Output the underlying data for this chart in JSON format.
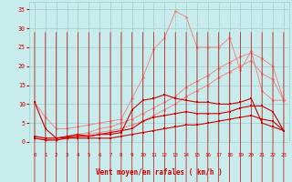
{
  "x": [
    0,
    1,
    2,
    3,
    4,
    5,
    6,
    7,
    8,
    9,
    10,
    11,
    12,
    13,
    14,
    15,
    16,
    17,
    18,
    19,
    20,
    21,
    22,
    23
  ],
  "line1_dark": [
    10.5,
    3.5,
    1.0,
    1.2,
    1.5,
    1.5,
    2.0,
    2.0,
    2.5,
    8.5,
    11.0,
    11.5,
    12.5,
    11.5,
    11.0,
    10.5,
    10.5,
    10.0,
    10.0,
    10.5,
    11.5,
    5.0,
    4.0,
    3.0
  ],
  "line2_dark": [
    1.5,
    1.0,
    1.0,
    1.5,
    2.0,
    1.5,
    2.0,
    2.5,
    3.0,
    3.5,
    5.5,
    6.5,
    7.0,
    7.5,
    8.0,
    7.5,
    7.5,
    7.5,
    8.0,
    9.0,
    9.5,
    9.5,
    8.0,
    3.0
  ],
  "line3_dark": [
    1.0,
    0.5,
    0.5,
    1.0,
    1.0,
    1.0,
    1.0,
    1.0,
    1.5,
    2.0,
    2.5,
    3.0,
    3.5,
    4.0,
    4.5,
    4.5,
    5.0,
    5.5,
    6.0,
    6.5,
    7.0,
    6.0,
    5.5,
    3.0
  ],
  "line4_light": [
    10.5,
    6.5,
    3.5,
    3.5,
    4.0,
    4.5,
    5.0,
    5.5,
    6.0,
    11.5,
    17.0,
    24.5,
    27.5,
    34.5,
    33.0,
    25.0,
    25.0,
    25.0,
    27.5,
    19.0,
    24.0,
    13.5,
    11.0,
    11.0
  ],
  "line5_light": [
    1.5,
    1.0,
    1.0,
    1.5,
    2.0,
    2.5,
    3.5,
    4.0,
    5.0,
    6.0,
    7.5,
    9.0,
    10.5,
    12.0,
    14.5,
    16.0,
    17.5,
    19.5,
    21.0,
    22.5,
    23.5,
    22.0,
    20.0,
    11.0
  ],
  "line6_light": [
    1.0,
    0.5,
    0.5,
    1.0,
    1.5,
    2.0,
    2.5,
    3.0,
    3.5,
    4.5,
    5.5,
    7.0,
    8.5,
    10.0,
    12.0,
    13.5,
    15.0,
    17.0,
    18.5,
    20.0,
    21.5,
    18.0,
    16.5,
    11.0
  ],
  "bg_color": "#c8ecec",
  "grid_color": "#a0cccc",
  "dark_red": "#cc0000",
  "light_red": "#ee8888",
  "xlabel": "Vent moyen/en rafales ( km/h )",
  "yticks": [
    0,
    5,
    10,
    15,
    20,
    25,
    30,
    35
  ],
  "xticks": [
    0,
    1,
    2,
    3,
    4,
    5,
    6,
    7,
    8,
    9,
    10,
    11,
    12,
    13,
    14,
    15,
    16,
    17,
    18,
    19,
    20,
    21,
    22,
    23
  ],
  "ylim": [
    0,
    37
  ],
  "xlim": [
    -0.5,
    23.5
  ]
}
